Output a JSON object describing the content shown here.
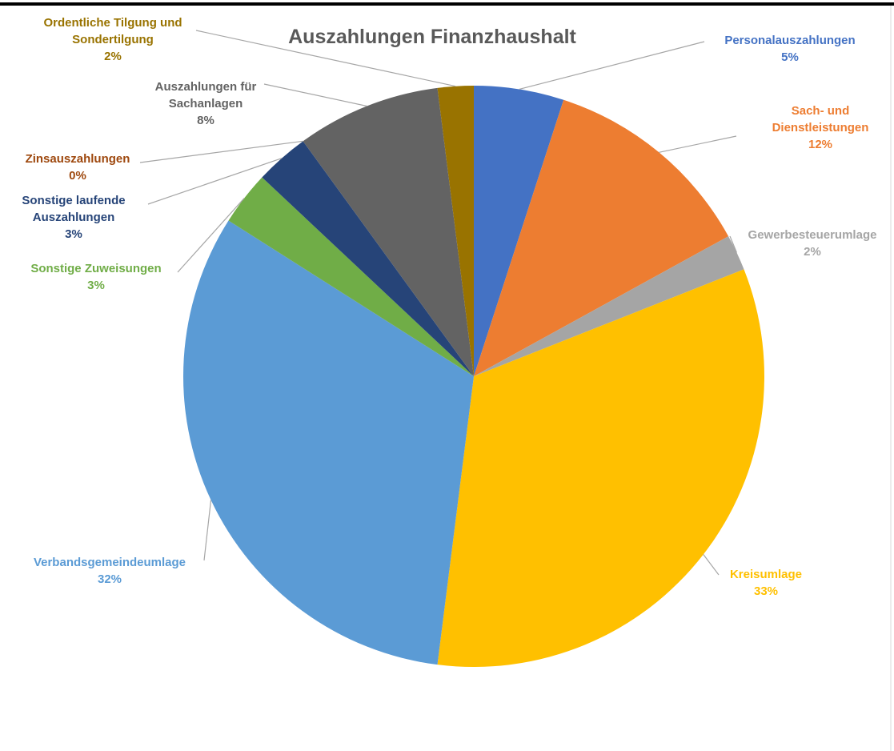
{
  "chart_data": {
    "type": "pie",
    "title": "Auszahlungen Finanzhaushalt",
    "categories": [
      "Personalauszahlungen",
      "Sach- und Dienstleistungen",
      "Gewerbesteuerumlage",
      "Kreisumlage",
      "Verbandsgemeindeumlage",
      "Sonstige Zuweisungen",
      "Sonstige laufende Auszahlungen",
      "Zinsauszahlungen",
      "Auszahlungen für Sachanlagen",
      "Ordentliche Tilgung und Sondertilgung"
    ],
    "values": [
      5,
      12,
      2,
      33,
      32,
      3,
      3,
      0,
      8,
      2
    ],
    "value_labels": [
      "5%",
      "12%",
      "2%",
      "33%",
      "32%",
      "3%",
      "3%",
      "0%",
      "8%",
      "2%"
    ],
    "colors": [
      "#4472c4",
      "#ed7d31",
      "#a5a5a5",
      "#ffc000",
      "#5b9bd5",
      "#70ad47",
      "#264478",
      "#9e480e",
      "#636363",
      "#997300"
    ]
  }
}
